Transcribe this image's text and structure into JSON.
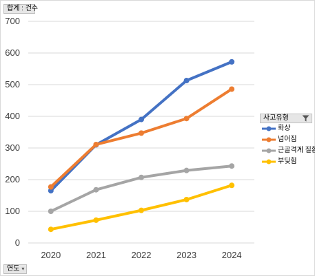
{
  "value_field": "합계 : 건수",
  "axis_field": "연도",
  "legend_title": "사고유형",
  "chart_data": {
    "type": "line",
    "categories": [
      "2020",
      "2021",
      "2022",
      "2023",
      "2024"
    ],
    "ylim": [
      0,
      700
    ],
    "yticks": [
      0,
      100,
      200,
      300,
      400,
      500,
      600,
      700
    ],
    "grid": true,
    "legend_position": "right",
    "series": [
      {
        "name": "화상",
        "color": "#4472c4",
        "values": [
          165,
          310,
          390,
          513,
          572
        ]
      },
      {
        "name": "넘어짐",
        "color": "#ed7d31",
        "values": [
          177,
          311,
          347,
          393,
          486
        ]
      },
      {
        "name": "근골격계 질환",
        "color": "#a5a5a5",
        "values": [
          100,
          168,
          207,
          229,
          243
        ]
      },
      {
        "name": "부딪힘",
        "color": "#ffc000",
        "values": [
          43,
          72,
          103,
          137,
          182
        ]
      }
    ]
  }
}
